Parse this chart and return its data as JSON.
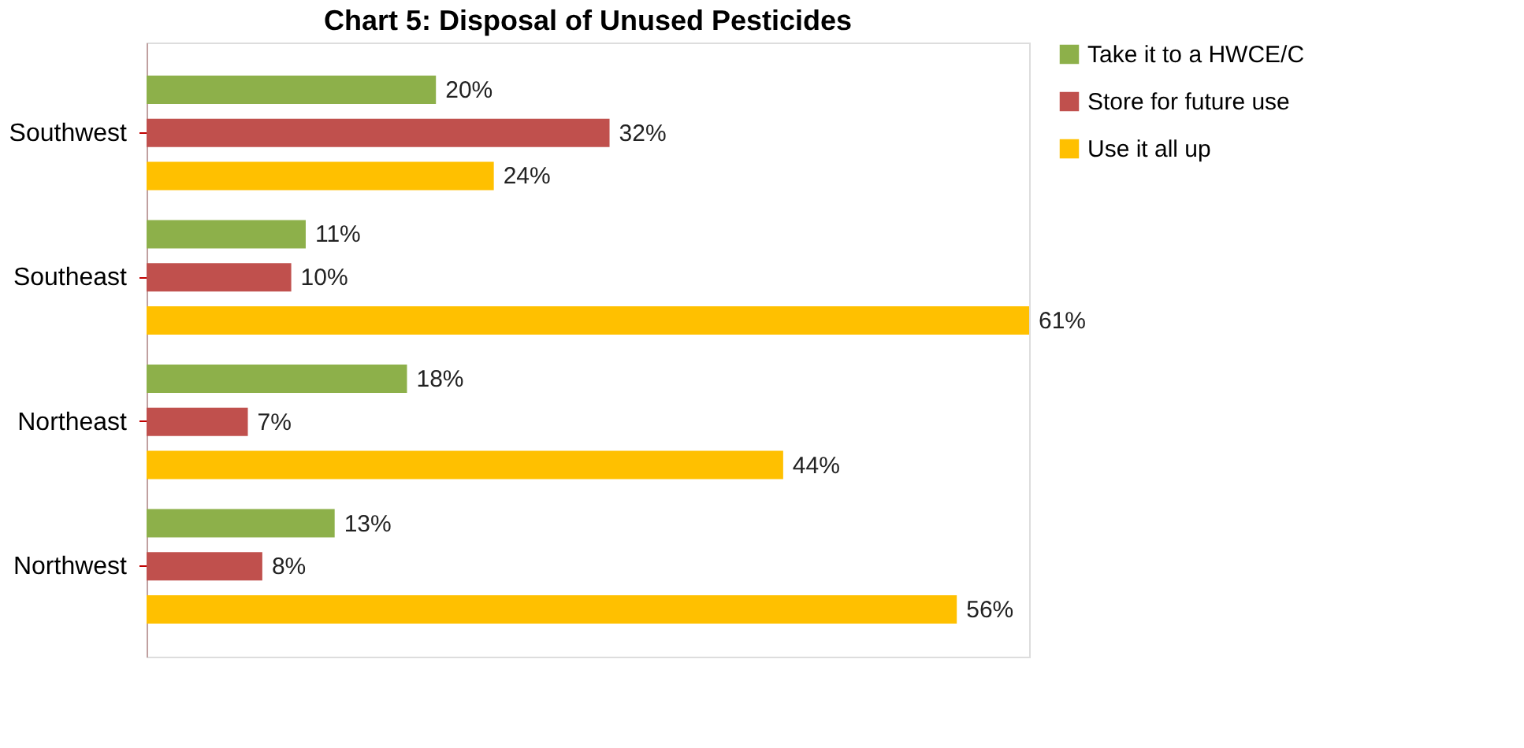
{
  "chart_data": {
    "type": "bar",
    "orientation": "horizontal",
    "title": "Chart 5:  Disposal of Unused Pesticides",
    "categories": [
      "Southwest",
      "Southeast",
      "Northeast",
      "Northwest"
    ],
    "series": [
      {
        "name": "Take it to a HWCE/C",
        "color": "#8db04a",
        "values": [
          20,
          11,
          18,
          13
        ],
        "value_labels": [
          "20%",
          "11%",
          "18%",
          "13%"
        ]
      },
      {
        "name": "Store for future use",
        "color": "#c0504d",
        "values": [
          32,
          10,
          7,
          8
        ],
        "value_labels": [
          "32%",
          "10%",
          "7%",
          "8%"
        ]
      },
      {
        "name": "Use it all up",
        "color": "#ffc000",
        "values": [
          24,
          61,
          44,
          56
        ],
        "value_labels": [
          "24%",
          "61%",
          "44%",
          "56%"
        ]
      }
    ],
    "legend": "right",
    "grid": false
  }
}
